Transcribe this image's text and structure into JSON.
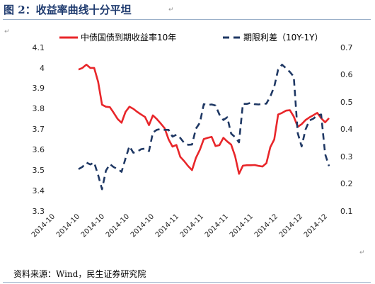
{
  "figure": {
    "title": "图 2：收益率曲线十分平坦",
    "source": "资料来源：Wind，民生证券研究院",
    "paragraph_mark": "↵"
  },
  "chart_data": {
    "type": "line",
    "colors": {
      "left_series": "#e8262a",
      "right_series": "#1f3864"
    },
    "x_tick_labels": [
      "2014-10",
      "2014-10",
      "2014-10",
      "2014-10",
      "2014-10",
      "2014-11",
      "2014-11",
      "2014-11",
      "2014-11",
      "2014-12",
      "2014-12",
      "2014-12"
    ],
    "y_left": {
      "min": 3.3,
      "max": 4.1,
      "ticks": [
        "3.3",
        "3.4",
        "3.5",
        "3.6",
        "3.7",
        "3.8",
        "3.9",
        "4",
        "4.1"
      ]
    },
    "y_right": {
      "min": 0.1,
      "max": 0.7,
      "ticks": [
        "0.1",
        "0.2",
        "0.3",
        "0.4",
        "0.5",
        "0.6",
        "0.7"
      ]
    },
    "legend_position": "top",
    "series": [
      {
        "name": "中债国债到期收益率10年",
        "axis": "left",
        "style": "solid",
        "values": [
          3.992,
          4.0,
          4.016,
          4.0,
          4.0,
          3.932,
          3.82,
          3.81,
          3.808,
          3.78,
          3.75,
          3.732,
          3.785,
          3.81,
          3.8,
          3.785,
          3.772,
          3.76,
          3.72,
          3.768,
          3.75,
          3.728,
          3.705,
          3.651,
          3.615,
          3.623,
          3.565,
          3.544,
          3.52,
          3.5,
          3.56,
          3.6,
          3.652,
          3.658,
          3.663,
          3.618,
          3.622,
          3.658,
          3.64,
          3.625,
          3.568,
          3.482,
          3.522,
          3.524,
          3.524,
          3.525,
          3.521,
          3.518,
          3.534,
          3.612,
          3.65,
          3.772,
          3.78,
          3.791,
          3.793,
          3.762,
          3.712,
          3.725,
          3.745,
          3.758,
          3.769,
          3.78,
          3.754,
          3.734,
          3.754
        ]
      },
      {
        "name": "期限利差（10Y-1Y）",
        "axis": "right",
        "style": "dashed",
        "values": [
          0.254,
          0.262,
          0.278,
          0.271,
          0.278,
          0.232,
          0.18,
          0.248,
          0.272,
          0.261,
          0.254,
          0.244,
          0.293,
          0.338,
          0.314,
          0.318,
          0.327,
          0.329,
          0.32,
          0.388,
          0.398,
          0.401,
          0.398,
          0.398,
          0.373,
          0.38,
          0.368,
          0.35,
          0.343,
          0.344,
          0.402,
          0.424,
          0.492,
          0.489,
          0.491,
          0.487,
          0.454,
          0.434,
          0.444,
          0.384,
          0.371,
          0.352,
          0.493,
          0.493,
          0.497,
          0.492,
          0.491,
          0.493,
          0.494,
          0.52,
          0.556,
          0.619,
          0.637,
          0.624,
          0.61,
          0.593,
          0.386,
          0.337,
          0.399,
          0.432,
          0.439,
          0.451,
          0.454,
          0.309,
          0.265
        ]
      }
    ]
  }
}
